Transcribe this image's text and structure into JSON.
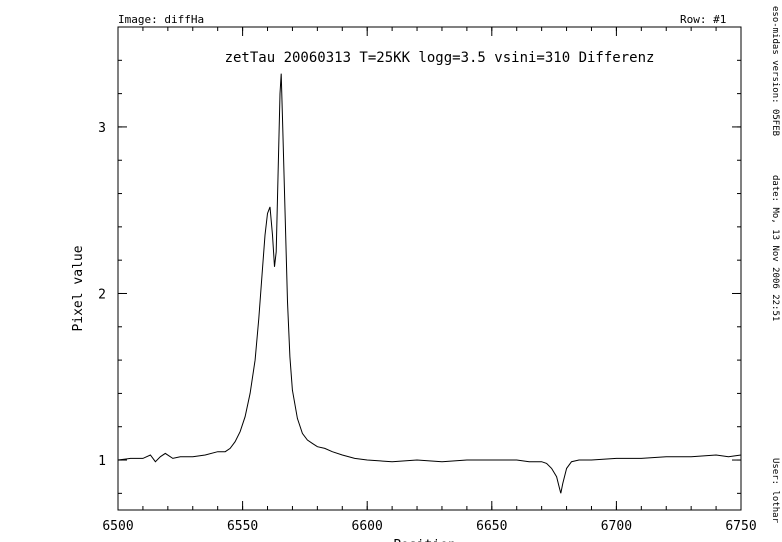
{
  "header": {
    "image_label": "Image: diffHa",
    "row_label": "Row: #1"
  },
  "side_info": {
    "version": "eso-midas version: 05FEB",
    "date": "date: Mo, 13 Nov 2006 22:51",
    "user": "User: lothar"
  },
  "chart_data": {
    "type": "line",
    "title": "zetTau 20060313 T=25KK logg=3.5 vsini=310 Differenz",
    "xlabel": "Position",
    "ylabel": "Pixel value",
    "xlim": [
      6500,
      6750
    ],
    "ylim": [
      0.7,
      3.6
    ],
    "xticks": [
      6500,
      6550,
      6600,
      6650,
      6700,
      6750
    ],
    "xtick_labels": [
      "6500",
      "6550",
      "6600",
      "6650",
      "6700",
      "6750"
    ],
    "yticks": [
      1,
      2,
      3
    ],
    "ytick_labels": [
      "1",
      "2",
      "3"
    ],
    "grid": false,
    "series": [
      {
        "x": [
          6500,
          6505,
          6510,
          6513,
          6515,
          6517,
          6519,
          6522,
          6525,
          6530,
          6535,
          6540,
          6543,
          6545,
          6547,
          6549,
          6551,
          6553,
          6555,
          6556.5,
          6558,
          6559,
          6560,
          6561,
          6562,
          6562.8,
          6563.5,
          6564.2,
          6565,
          6565.5,
          6566,
          6567,
          6568,
          6569,
          6570,
          6572,
          6574,
          6576,
          6578,
          6580,
          6583,
          6586,
          6590,
          6595,
          6600,
          6610,
          6620,
          6630,
          6640,
          6650,
          6660,
          6665,
          6670,
          6672,
          6674,
          6676,
          6677,
          6677.7,
          6678.5,
          6680,
          6682,
          6685,
          6690,
          6700,
          6710,
          6720,
          6730,
          6740,
          6745,
          6750
        ],
        "y": [
          1.0,
          1.01,
          1.01,
          1.03,
          0.99,
          1.02,
          1.04,
          1.01,
          1.02,
          1.02,
          1.03,
          1.05,
          1.05,
          1.07,
          1.11,
          1.17,
          1.26,
          1.4,
          1.6,
          1.85,
          2.15,
          2.35,
          2.48,
          2.52,
          2.35,
          2.16,
          2.25,
          2.7,
          3.2,
          3.32,
          3.05,
          2.5,
          1.95,
          1.62,
          1.42,
          1.25,
          1.16,
          1.12,
          1.1,
          1.08,
          1.07,
          1.05,
          1.03,
          1.01,
          1.0,
          0.99,
          1.0,
          0.99,
          1.0,
          1.0,
          1.0,
          0.99,
          0.99,
          0.98,
          0.95,
          0.9,
          0.84,
          0.8,
          0.86,
          0.95,
          0.99,
          1.0,
          1.0,
          1.01,
          1.01,
          1.02,
          1.02,
          1.03,
          1.02,
          1.03
        ]
      }
    ]
  }
}
